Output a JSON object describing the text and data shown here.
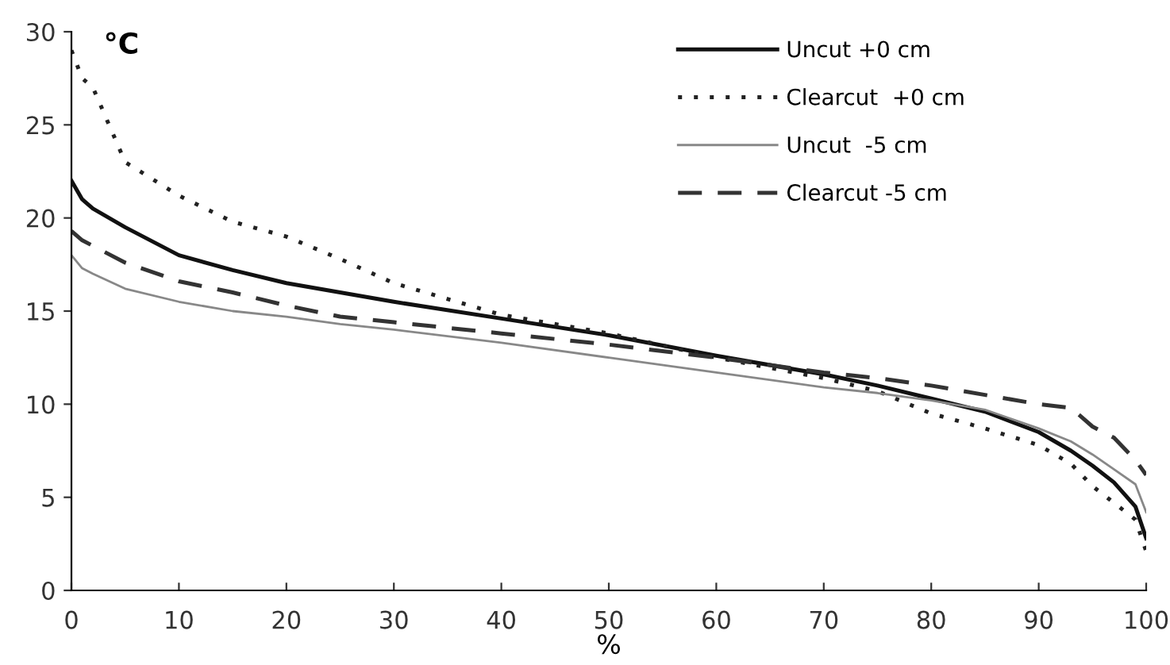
{
  "chart_data": {
    "type": "line",
    "xlabel": "%",
    "ylabel": "°C",
    "x": [
      0,
      1,
      2,
      5,
      10,
      15,
      20,
      25,
      30,
      40,
      50,
      60,
      70,
      75,
      80,
      85,
      90,
      93,
      95,
      97,
      99,
      100
    ],
    "series": [
      {
        "name": "Uncut +0 cm",
        "color": "#111111",
        "line_style": "solid",
        "values": [
          22,
          21,
          20.5,
          19.5,
          18,
          17.2,
          16.5,
          16,
          15.5,
          14.6,
          13.7,
          12.6,
          11.6,
          11,
          10.3,
          9.6,
          8.5,
          7.5,
          6.7,
          5.8,
          4.5,
          2.8
        ]
      },
      {
        "name": "Clearcut  +0 cm",
        "color": "#222222",
        "line_style": "dotted",
        "values": [
          29,
          27.5,
          27,
          23,
          21.2,
          19.8,
          19,
          17.8,
          16.5,
          14.8,
          13.8,
          12.5,
          11.4,
          10.7,
          9.5,
          8.7,
          7.8,
          6.8,
          5.6,
          4.7,
          3.8,
          2.1
        ]
      },
      {
        "name": "Uncut  -5 cm",
        "color": "#888888",
        "line_style": "solid",
        "values": [
          18,
          17.3,
          17,
          16.2,
          15.5,
          15,
          14.7,
          14.3,
          14,
          13.3,
          12.5,
          11.7,
          10.9,
          10.6,
          10.2,
          9.7,
          8.7,
          8,
          7.3,
          6.5,
          5.7,
          4.2
        ]
      },
      {
        "name": "Clearcut -5 cm",
        "color": "#333333",
        "line_style": "dashed",
        "values": [
          19.3,
          18.8,
          18.5,
          17.6,
          16.6,
          16,
          15.3,
          14.7,
          14.4,
          13.8,
          13.2,
          12.5,
          11.7,
          11.4,
          11,
          10.5,
          10,
          9.8,
          8.8,
          8.2,
          7,
          6.2
        ]
      }
    ],
    "xlim": [
      0,
      100
    ],
    "xticks": [
      0,
      10,
      20,
      30,
      40,
      50,
      60,
      70,
      80,
      90,
      100
    ],
    "ylim": [
      0,
      30
    ],
    "yticks": [
      0,
      5,
      10,
      15,
      20,
      25,
      30
    ],
    "grid": false,
    "legend": "top right",
    "marker": "none"
  }
}
